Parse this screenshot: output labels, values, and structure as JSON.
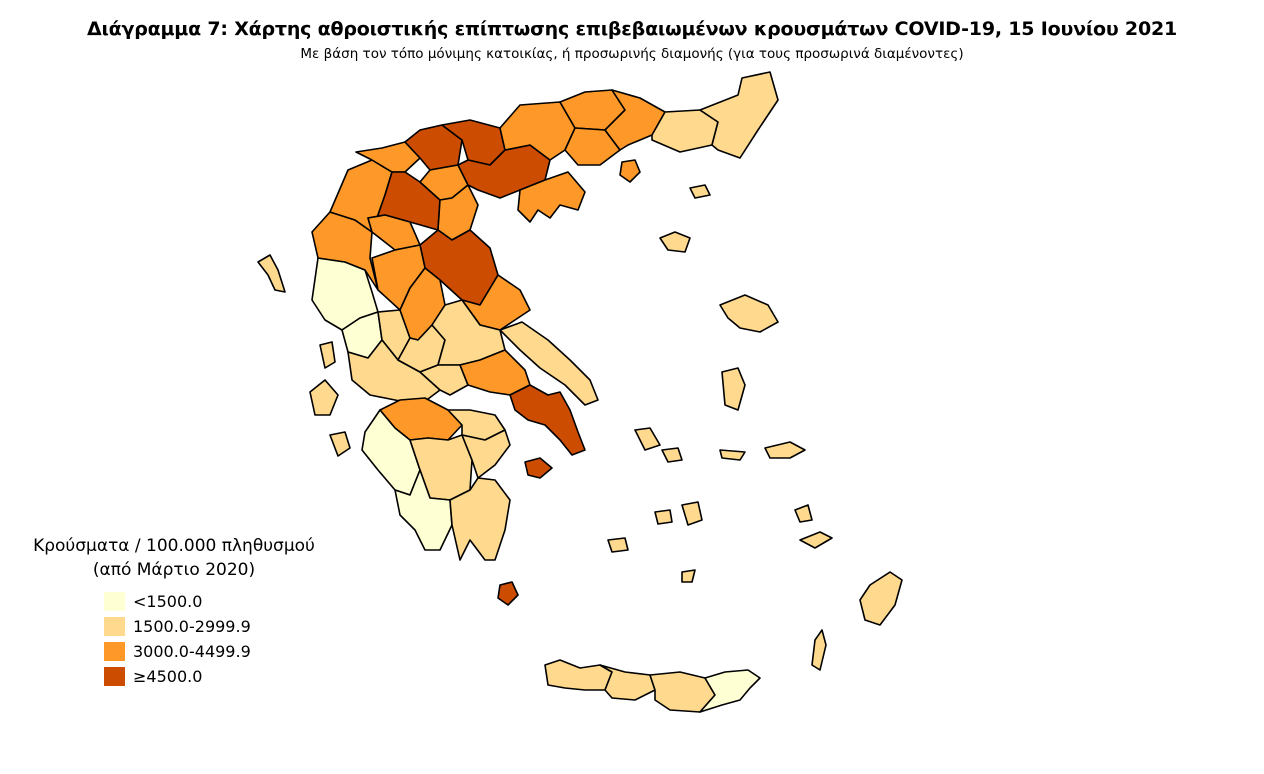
{
  "title": "Διάγραμμα 7: Χάρτης αθροιστικής επίπτωσης επιβεβαιωμένων κρουσμάτων COVID-19, 15 Ιουνίου 2021",
  "subtitle": "Με βάση τον τόπο μόνιμης κατοικίας, ή προσωρινής διαμονής (για τους προσωρινά διαμένοντες)",
  "legend": {
    "title_line1": "Κρούσματα / 100.000 πληθυσμού",
    "title_line2": "(από Μάρτιο 2020)",
    "classes": [
      {
        "label": "<1500.0",
        "color": "#ffffd4"
      },
      {
        "label": "1500.0-2999.9",
        "color": "#fed98e"
      },
      {
        "label": "3000.0-4499.9",
        "color": "#fe9929"
      },
      {
        "label": "≥4500.0",
        "color": "#cc4c02"
      }
    ]
  },
  "regions": [
    {
      "name": "Thesprotia-Preveza area",
      "class": 0
    },
    {
      "name": "Ilia-Messinia",
      "class": 0
    },
    {
      "name": "Ioannina",
      "class": 2
    },
    {
      "name": "Kastoria",
      "class": 2
    },
    {
      "name": "Florina",
      "class": 2
    },
    {
      "name": "Pella",
      "class": 3
    },
    {
      "name": "Kozani",
      "class": 3
    },
    {
      "name": "Imathia",
      "class": 2
    },
    {
      "name": "Pieria",
      "class": 2
    },
    {
      "name": "Kilkis",
      "class": 3
    },
    {
      "name": "Thessaloniki",
      "class": 3
    },
    {
      "name": "Serres",
      "class": 2
    },
    {
      "name": "Drama",
      "class": 2
    },
    {
      "name": "Kavala",
      "class": 2
    },
    {
      "name": "Xanthi",
      "class": 2
    },
    {
      "name": "Rodopi",
      "class": 1
    },
    {
      "name": "Evros",
      "class": 1
    },
    {
      "name": "Chalkidiki",
      "class": 2
    },
    {
      "name": "Larisa",
      "class": 3
    },
    {
      "name": "Magnisia",
      "class": 2
    },
    {
      "name": "Trikala",
      "class": 2
    },
    {
      "name": "Grevena",
      "class": 2
    },
    {
      "name": "Karditsa",
      "class": 2
    },
    {
      "name": "Arta",
      "class": 1
    },
    {
      "name": "Aitoloakarnania",
      "class": 1
    },
    {
      "name": "Evrytania",
      "class": 1
    },
    {
      "name": "Fthiotida",
      "class": 1
    },
    {
      "name": "Fokida",
      "class": 1
    },
    {
      "name": "Voiotia",
      "class": 2
    },
    {
      "name": "Evia",
      "class": 1
    },
    {
      "name": "Attiki",
      "class": 3
    },
    {
      "name": "Achaia",
      "class": 2
    },
    {
      "name": "Korinthia",
      "class": 1
    },
    {
      "name": "Argolida",
      "class": 1
    },
    {
      "name": "Arkadia",
      "class": 1
    },
    {
      "name": "Lakonia",
      "class": 1
    },
    {
      "name": "Kythira",
      "class": 3
    },
    {
      "name": "Corfu",
      "class": 1
    },
    {
      "name": "Lefkada",
      "class": 1
    },
    {
      "name": "Kefalonia",
      "class": 1
    },
    {
      "name": "Zakynthos",
      "class": 1
    },
    {
      "name": "Thasos",
      "class": 2
    },
    {
      "name": "Samothraki",
      "class": 1
    },
    {
      "name": "Limnos",
      "class": 1
    },
    {
      "name": "Lesvos",
      "class": 1
    },
    {
      "name": "Chios",
      "class": 1
    },
    {
      "name": "Samos",
      "class": 1
    },
    {
      "name": "Cyclades",
      "class": 1
    },
    {
      "name": "Dodecanese",
      "class": 1
    },
    {
      "name": "Rodos",
      "class": 1
    },
    {
      "name": "Chania",
      "class": 1
    },
    {
      "name": "Rethymno",
      "class": 1
    },
    {
      "name": "Irakleio",
      "class": 1
    },
    {
      "name": "Lasithi",
      "class": 0
    },
    {
      "name": "Salamina-Aegina",
      "class": 3
    }
  ]
}
